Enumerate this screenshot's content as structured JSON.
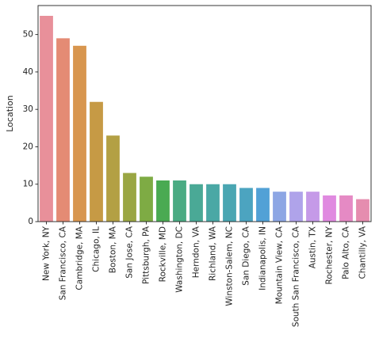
{
  "chart_data": {
    "type": "bar",
    "categories": [
      "New York, NY",
      "San Francisco, CA",
      "Cambridge, MA",
      "Chicago, IL",
      "Boston, MA",
      "San Jose, CA",
      "Pittsburgh, PA",
      "Rockville, MD",
      "Washington, DC",
      "Herndon, VA",
      "Richland, WA",
      "Winston-Salem, NC",
      "San Diego, CA",
      "Indianapolis, IN",
      "Mountain View, CA",
      "South San Francisco, CA",
      "Austin, TX",
      "Rochester, NY",
      "Palo Alto, CA",
      "Chantilly, VA"
    ],
    "values": [
      55,
      49,
      47,
      32,
      23,
      13,
      12,
      11,
      11,
      10,
      10,
      10,
      9,
      9,
      8,
      8,
      8,
      7,
      7,
      6
    ],
    "colors": [
      "#e8909a",
      "#e48b74",
      "#d8964f",
      "#c69a45",
      "#b3a044",
      "#9aa643",
      "#7eab44",
      "#4aaa52",
      "#4aab83",
      "#4aa996",
      "#4aa8a5",
      "#4aa6b2",
      "#4ca4c0",
      "#52a1d6",
      "#8da6e4",
      "#afa3ea",
      "#c59ae8",
      "#e08ae0",
      "#e58ac4",
      "#e58daf"
    ],
    "title": "",
    "xlabel": "",
    "ylabel": "Location",
    "ylim": [
      0,
      57.75
    ],
    "yticks": [
      0,
      10,
      20,
      30,
      40,
      50
    ],
    "grid": false
  }
}
